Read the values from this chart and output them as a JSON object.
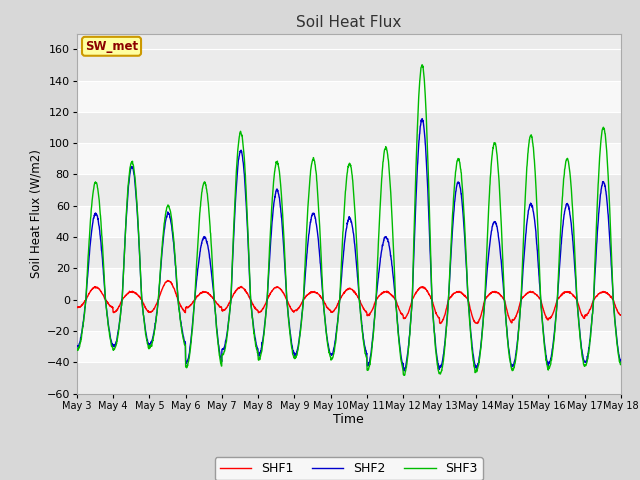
{
  "title": "Soil Heat Flux",
  "xlabel": "Time",
  "ylabel": "Soil Heat Flux (W/m2)",
  "ylim": [
    -60,
    170
  ],
  "yticks": [
    -60,
    -40,
    -20,
    0,
    20,
    40,
    60,
    80,
    100,
    120,
    140,
    160
  ],
  "start_day": 3,
  "end_day": 18,
  "n_days": 15,
  "annotation_text": "SW_met",
  "annotation_color": "#8B0000",
  "annotation_bg": "#FFFFA0",
  "colors": {
    "SHF1": "#FF0000",
    "SHF2": "#0000CC",
    "SHF3": "#00BB00"
  },
  "background_color": "#D8D8D8",
  "plot_bg_light": "#EBEBEB",
  "plot_bg_dark": "#F8F8F8",
  "grid_color": "#FFFFFF",
  "linewidth": 1.0,
  "shf1_day_amps": [
    8,
    5,
    12,
    5,
    8,
    8,
    5,
    7,
    5,
    8,
    5,
    5,
    5,
    5,
    5
  ],
  "shf2_day_amps": [
    55,
    85,
    55,
    40,
    95,
    70,
    55,
    52,
    40,
    115,
    75,
    50,
    61,
    61,
    75
  ],
  "shf3_day_amps": [
    75,
    88,
    60,
    75,
    107,
    88,
    90,
    87,
    97,
    150,
    90,
    100,
    105,
    90,
    110
  ],
  "shf1_night": [
    -5,
    -8,
    -8,
    -5,
    -7,
    -8,
    -7,
    -8,
    -10,
    -12,
    -15,
    -15,
    -13,
    -12,
    -10
  ],
  "shf2_night": [
    -30,
    -30,
    -28,
    -40,
    -32,
    -35,
    -35,
    -35,
    -42,
    -45,
    -43,
    -43,
    -42,
    -40,
    -40
  ],
  "shf3_night": [
    -32,
    -32,
    -30,
    -43,
    -35,
    -38,
    -37,
    -38,
    -45,
    -48,
    -47,
    -45,
    -45,
    -43,
    -42
  ]
}
